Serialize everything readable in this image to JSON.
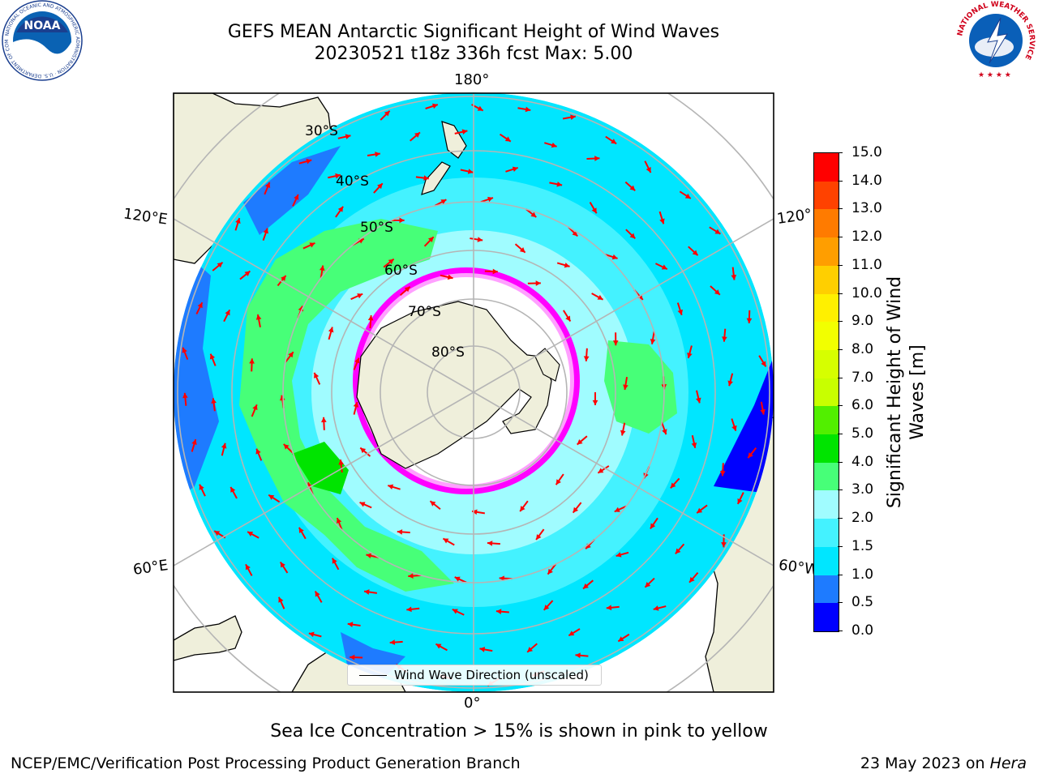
{
  "header": {
    "title_line1": "GEFS MEAN Antarctic Significant Height of Wind Waves",
    "title_line2": "20230521 t18z 336h fcst   Max: 5.00"
  },
  "map": {
    "projection": "south polar stereographic",
    "longitude_labels": {
      "top": "180°",
      "bottom": "0°",
      "upper_left": "120°E",
      "lower_left": "60°E",
      "upper_right": "120°",
      "lower_right": "60°W"
    },
    "latitude_labels": [
      "30°S",
      "40°S",
      "50°S",
      "60°S",
      "70°S",
      "80°S"
    ],
    "legend_label": "Wind Wave Direction (unscaled)",
    "arrow_color": "#ff0000",
    "land_color": "#efefdb",
    "ice_colors": [
      "#ff00ff",
      "#ffa0ff",
      "#ffd700"
    ]
  },
  "colorbar": {
    "title_line1": "Significant Height of Wind",
    "title_line2": "Waves [m]",
    "ticks": [
      "0.0",
      "0.5",
      "1.0",
      "1.5",
      "2.0",
      "3.0",
      "4.0",
      "5.0",
      "6.0",
      "7.0",
      "8.0",
      "9.0",
      "10.0",
      "11.0",
      "12.0",
      "13.0",
      "14.0",
      "15.0"
    ],
    "colors": [
      "#0000ff",
      "#1e7bff",
      "#00e6ff",
      "#44f2ff",
      "#a0fcff",
      "#47ff78",
      "#00e400",
      "#52ef00",
      "#c8ff00",
      "#d6ff00",
      "#f2ff00",
      "#fff000",
      "#ffcf00",
      "#ff9e00",
      "#ff7b00",
      "#ff4200",
      "#ff0000"
    ]
  },
  "footer": {
    "note": "Sea Ice Concentration > 15% is shown in pink to yellow",
    "credit_left": "NCEP/EMC/Verification Post Processing Product Generation Branch",
    "credit_date": "23 May 2023 on",
    "credit_host": "Hera"
  },
  "logos": {
    "left": "NOAA",
    "left_ring": "NATIONAL OCEANIC AND ATMOSPHERIC ADMINISTRATION · U.S. DEPARTMENT OF COMMERCE",
    "right_ring": "NATIONAL WEATHER SERVICE"
  }
}
